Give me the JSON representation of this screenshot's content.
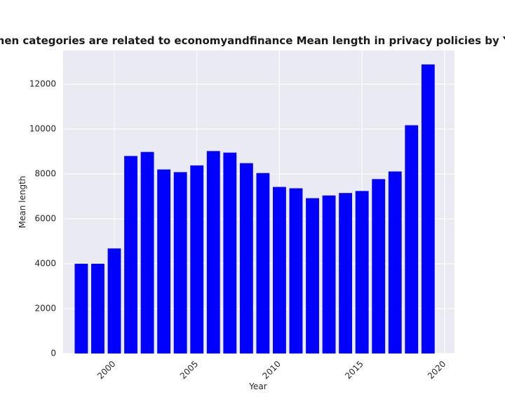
{
  "chart_data": {
    "type": "bar",
    "title": "when categories are related to economyandfinance Mean length in privacy policies by Year",
    "xlabel": "Year",
    "ylabel": "Mean length",
    "x": [
      1998,
      1999,
      2000,
      2001,
      2002,
      2003,
      2004,
      2005,
      2006,
      2007,
      2008,
      2009,
      2010,
      2011,
      2012,
      2013,
      2014,
      2015,
      2016,
      2017,
      2018,
      2019
    ],
    "values": [
      4000,
      4000,
      4680,
      8800,
      8980,
      8200,
      8080,
      8380,
      9020,
      8950,
      8480,
      8040,
      7420,
      7360,
      6920,
      7040,
      7150,
      7240,
      7770,
      8110,
      10170,
      12880
    ],
    "xticks": [
      "2000",
      "2005",
      "2010",
      "2015",
      "2020"
    ],
    "xtick_values": [
      2000,
      2005,
      2010,
      2015,
      2020
    ],
    "yticks": [
      "0",
      "2000",
      "4000",
      "6000",
      "8000",
      "10000",
      "12000"
    ],
    "ytick_values": [
      0,
      2000,
      4000,
      6000,
      8000,
      10000,
      12000
    ],
    "xlim": [
      1996.9,
      2020.6
    ],
    "ylim": [
      0,
      13500
    ],
    "grid": true,
    "colors": {
      "bar": "#0000ff",
      "plot_background": "#eaeaf2",
      "grid": "#ffffff",
      "text": "#262626"
    }
  }
}
